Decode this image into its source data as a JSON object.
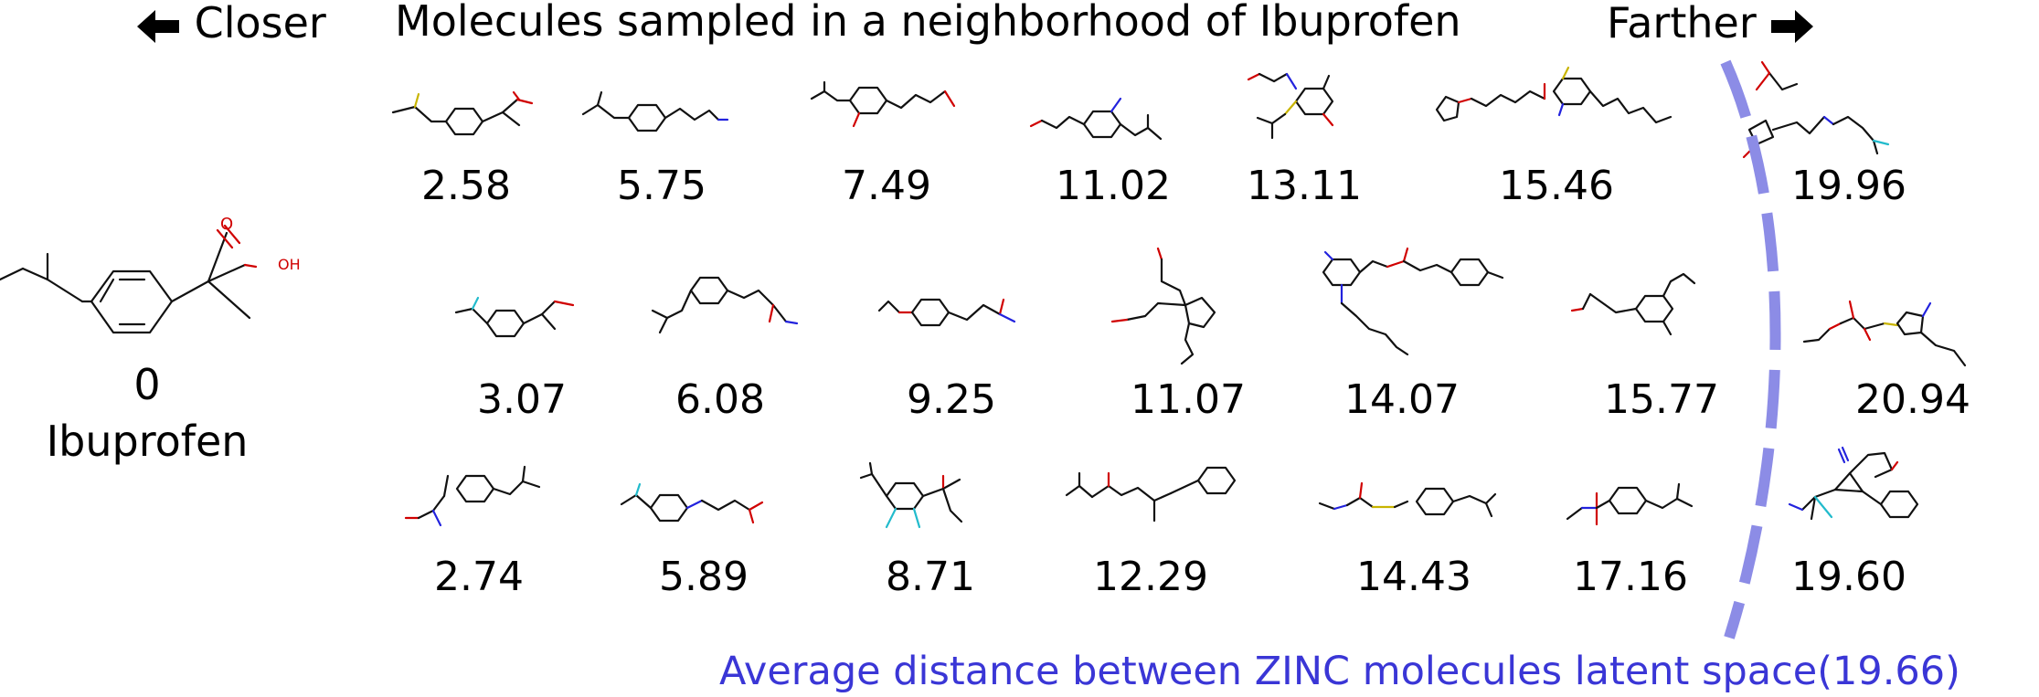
{
  "header": {
    "closer_label": "Closer",
    "title": "Molecules sampled in a neighborhood of Ibuprofen",
    "farther_label": "Farther"
  },
  "reference": {
    "distance": "0",
    "name": "Ibuprofen",
    "atom_labels": {
      "o": "O",
      "oh": "OH"
    }
  },
  "grid": {
    "rows": [
      [
        "2.58",
        "5.75",
        "7.49",
        "11.02",
        "13.11",
        "15.46",
        "19.96"
      ],
      [
        "3.07",
        "6.08",
        "9.25",
        "11.07",
        "14.07",
        "15.77",
        "20.94"
      ],
      [
        "2.74",
        "5.89",
        "8.71",
        "12.29",
        "14.43",
        "17.16",
        "19.60"
      ]
    ]
  },
  "footnote": "Average distance between ZINC molecules latent space(19.66)",
  "colors": {
    "text": "#000000",
    "footnote": "#3a36d6",
    "boundary": "#8c8ce6",
    "oxygen": "#d00000",
    "nitrogen": "#2222dd",
    "fluorine": "#22bbcc",
    "sulfur": "#c8b400"
  },
  "icons": {
    "left_arrow": "left-arrow-icon",
    "right_arrow": "right-arrow-icon"
  }
}
